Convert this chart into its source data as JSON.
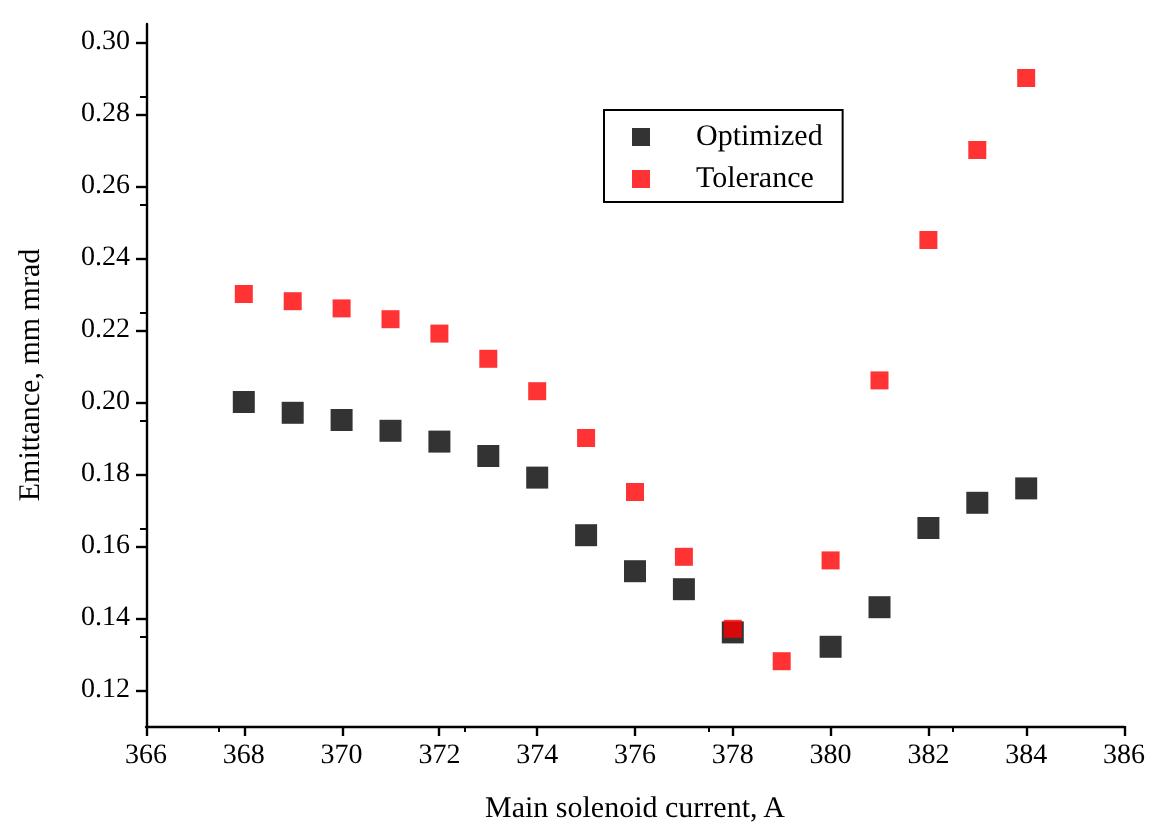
{
  "chart_data": {
    "type": "scatter",
    "xlabel": "Main solenoid current, A",
    "ylabel": "Emittance, mm mrad",
    "x": [
      368,
      369,
      370,
      371,
      372,
      373,
      374,
      375,
      376,
      377,
      378,
      379,
      380,
      381,
      382,
      383,
      384
    ],
    "series": [
      {
        "name": "Optimized",
        "color": "#000000",
        "values": [
          0.2,
          0.197,
          0.195,
          0.192,
          0.189,
          0.185,
          0.179,
          0.163,
          0.153,
          0.148,
          0.136,
          null,
          0.132,
          0.143,
          0.165,
          0.172,
          0.176
        ]
      },
      {
        "name": "Tolerance",
        "color": "#ff0000",
        "values": [
          0.23,
          0.228,
          0.226,
          0.223,
          0.219,
          0.212,
          0.203,
          0.19,
          0.175,
          0.157,
          0.137,
          0.128,
          0.156,
          0.206,
          0.245,
          0.27,
          0.29
        ]
      }
    ],
    "xlim": [
      366,
      386
    ],
    "xticks": [
      366,
      368,
      370,
      372,
      374,
      376,
      378,
      380,
      382,
      384,
      386
    ],
    "ylim": [
      0.11,
      0.305
    ],
    "yticks": [
      {
        "value": 0.12,
        "label": "0.12"
      },
      {
        "value": 0.14,
        "label": "0.14"
      },
      {
        "value": 0.16,
        "label": "0.16"
      },
      {
        "value": 0.18,
        "label": "0.18"
      },
      {
        "value": 0.2,
        "label": "0.20"
      },
      {
        "value": 0.22,
        "label": "0.22"
      },
      {
        "value": 0.24,
        "label": "0.24"
      },
      {
        "value": 0.26,
        "label": "0.26"
      },
      {
        "value": 0.28,
        "label": "0.28"
      },
      {
        "value": 0.3,
        "label": "0.30"
      }
    ],
    "marker": "square",
    "grid": false,
    "legend": "top"
  }
}
